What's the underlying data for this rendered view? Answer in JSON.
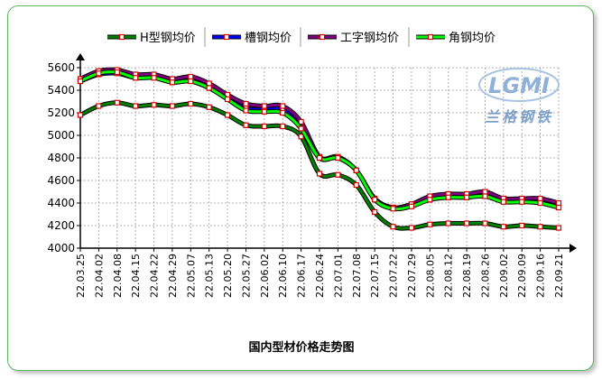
{
  "chart_data": {
    "type": "line",
    "title": "国内型材价格走势图",
    "xlabel": "",
    "ylabel": "",
    "ylim": [
      4000,
      5600
    ],
    "yticks": [
      4000,
      4200,
      4400,
      4600,
      4800,
      5000,
      5200,
      5400,
      5600
    ],
    "grid": true,
    "legend_position": "top",
    "categories": [
      "22.03.25",
      "22.04.02",
      "22.04.08",
      "22.04.15",
      "22.04.22",
      "22.04.29",
      "22.05.07",
      "22.05.13",
      "22.05.20",
      "22.05.27",
      "22.06.02",
      "22.06.10",
      "22.06.17",
      "22.06.24",
      "22.07.01",
      "22.07.08",
      "22.07.15",
      "22.07.22",
      "22.07.29",
      "22.08.05",
      "22.08.12",
      "22.08.19",
      "22.08.26",
      "22.09.02",
      "22.09.09",
      "22.09.16",
      "22.09.21"
    ],
    "series": [
      {
        "name": "H型钢均价",
        "color": "#008000",
        "values": [
          5180,
          5260,
          5290,
          5260,
          5270,
          5260,
          5280,
          5250,
          5180,
          5090,
          5080,
          5080,
          4990,
          4660,
          4650,
          4560,
          4320,
          4190,
          4180,
          4210,
          4220,
          4220,
          4220,
          4190,
          4200,
          4190,
          4180
        ]
      },
      {
        "name": "槽钢均价",
        "color": "#0000ff",
        "values": [
          5480,
          5540,
          5550,
          5510,
          5520,
          5470,
          5480,
          5420,
          5330,
          5240,
          5230,
          5230,
          5080,
          4800,
          4800,
          4690,
          4440,
          4360,
          4380,
          4430,
          4450,
          4450,
          4470,
          4420,
          4420,
          4420,
          4380
        ]
      },
      {
        "name": "工字钢均价",
        "color": "#800080",
        "values": [
          5500,
          5570,
          5580,
          5540,
          5540,
          5500,
          5520,
          5460,
          5360,
          5280,
          5260,
          5260,
          5120,
          4810,
          4810,
          4690,
          4440,
          4360,
          4390,
          4460,
          4480,
          4480,
          4500,
          4440,
          4440,
          4440,
          4400
        ]
      },
      {
        "name": "角钢均价",
        "color": "#00ff00",
        "values": [
          5480,
          5550,
          5560,
          5510,
          5510,
          5470,
          5480,
          5420,
          5320,
          5220,
          5210,
          5200,
          5060,
          4800,
          4800,
          4690,
          4430,
          4350,
          4370,
          4430,
          4450,
          4450,
          4460,
          4410,
          4410,
          4400,
          4360
        ]
      }
    ]
  },
  "logo": {
    "main": "LGMI",
    "sub": "兰格钢铁"
  }
}
